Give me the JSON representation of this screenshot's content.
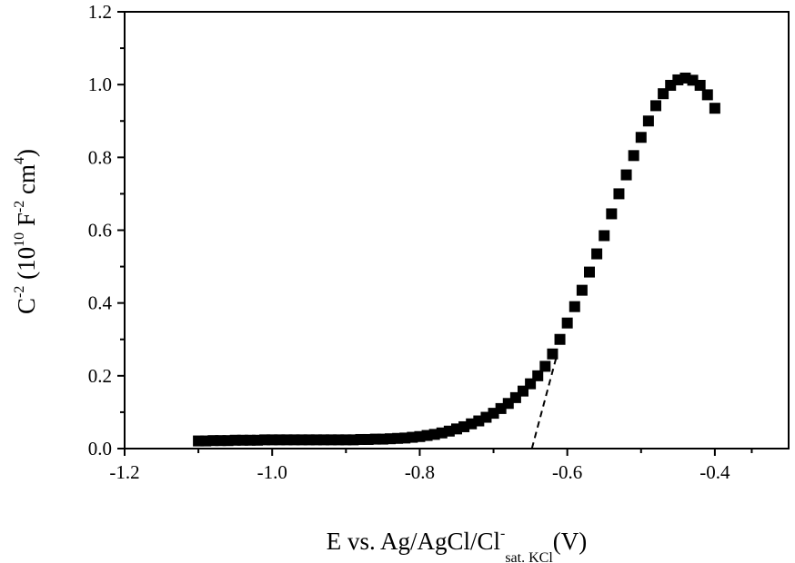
{
  "chart_data": {
    "type": "scatter",
    "title": "",
    "xlabel": {
      "main": "E vs. Ag/AgCl/Cl",
      "sup": "-",
      "sub": "sat. KCl",
      "unit": "(V)"
    },
    "ylabel": {
      "base": "C",
      "sup": "-2",
      "paren_open": " (10",
      "exp": "10",
      "f": " F",
      "f_sup": "-2",
      "cm": " cm",
      "cm_sup": "4",
      "paren_close": ")"
    },
    "xlim": [
      -1.2,
      -0.3
    ],
    "ylim": [
      0.0,
      1.2
    ],
    "x_ticks": [
      "-1.2",
      "-1.0",
      "-0.8",
      "-0.6",
      "-0.4"
    ],
    "x_tick_values": [
      -1.2,
      -1.0,
      -0.8,
      -0.6,
      -0.4
    ],
    "y_ticks": [
      "0.0",
      "0.2",
      "0.4",
      "0.6",
      "0.8",
      "1.0",
      "1.2"
    ],
    "y_tick_values": [
      0.0,
      0.2,
      0.4,
      0.6,
      0.8,
      1.0,
      1.2
    ],
    "grid": false,
    "marker": "filled-square",
    "marker_color": "#000000",
    "series": [
      {
        "values": [
          [
            -1.1,
            0.021
          ],
          [
            -1.09,
            0.021
          ],
          [
            -1.08,
            0.022
          ],
          [
            -1.07,
            0.022
          ],
          [
            -1.06,
            0.022
          ],
          [
            -1.05,
            0.023
          ],
          [
            -1.04,
            0.023
          ],
          [
            -1.03,
            0.023
          ],
          [
            -1.02,
            0.023
          ],
          [
            -1.01,
            0.024
          ],
          [
            -1.0,
            0.024
          ],
          [
            -0.99,
            0.024
          ],
          [
            -0.98,
            0.024
          ],
          [
            -0.97,
            0.024
          ],
          [
            -0.96,
            0.024
          ],
          [
            -0.95,
            0.024
          ],
          [
            -0.94,
            0.024
          ],
          [
            -0.93,
            0.024
          ],
          [
            -0.92,
            0.024
          ],
          [
            -0.91,
            0.024
          ],
          [
            -0.9,
            0.024
          ],
          [
            -0.89,
            0.024
          ],
          [
            -0.88,
            0.025
          ],
          [
            -0.87,
            0.025
          ],
          [
            -0.86,
            0.026
          ],
          [
            -0.85,
            0.026
          ],
          [
            -0.84,
            0.027
          ],
          [
            -0.83,
            0.028
          ],
          [
            -0.82,
            0.029
          ],
          [
            -0.81,
            0.031
          ],
          [
            -0.8,
            0.033
          ],
          [
            -0.79,
            0.036
          ],
          [
            -0.78,
            0.039
          ],
          [
            -0.77,
            0.043
          ],
          [
            -0.76,
            0.048
          ],
          [
            -0.75,
            0.054
          ],
          [
            -0.74,
            0.06
          ],
          [
            -0.73,
            0.068
          ],
          [
            -0.72,
            0.076
          ],
          [
            -0.71,
            0.086
          ],
          [
            -0.7,
            0.097
          ],
          [
            -0.69,
            0.11
          ],
          [
            -0.68,
            0.124
          ],
          [
            -0.67,
            0.14
          ],
          [
            -0.66,
            0.158
          ],
          [
            -0.65,
            0.178
          ],
          [
            -0.64,
            0.2
          ],
          [
            -0.63,
            0.226
          ],
          [
            -0.62,
            0.26
          ],
          [
            -0.61,
            0.3
          ],
          [
            -0.6,
            0.345
          ],
          [
            -0.59,
            0.39
          ],
          [
            -0.58,
            0.435
          ],
          [
            -0.57,
            0.485
          ],
          [
            -0.56,
            0.535
          ],
          [
            -0.55,
            0.585
          ],
          [
            -0.54,
            0.645
          ],
          [
            -0.53,
            0.7
          ],
          [
            -0.52,
            0.752
          ],
          [
            -0.51,
            0.805
          ],
          [
            -0.5,
            0.855
          ],
          [
            -0.49,
            0.9
          ],
          [
            -0.48,
            0.942
          ],
          [
            -0.47,
            0.975
          ],
          [
            -0.46,
            0.998
          ],
          [
            -0.45,
            1.013
          ],
          [
            -0.44,
            1.018
          ],
          [
            -0.43,
            1.012
          ],
          [
            -0.42,
            0.998
          ],
          [
            -0.41,
            0.972
          ],
          [
            -0.4,
            0.935
          ]
        ]
      }
    ],
    "fit_line": {
      "style": "dashed",
      "points": [
        [
          -0.648,
          0.0
        ],
        [
          -0.615,
          0.25
        ]
      ]
    }
  }
}
